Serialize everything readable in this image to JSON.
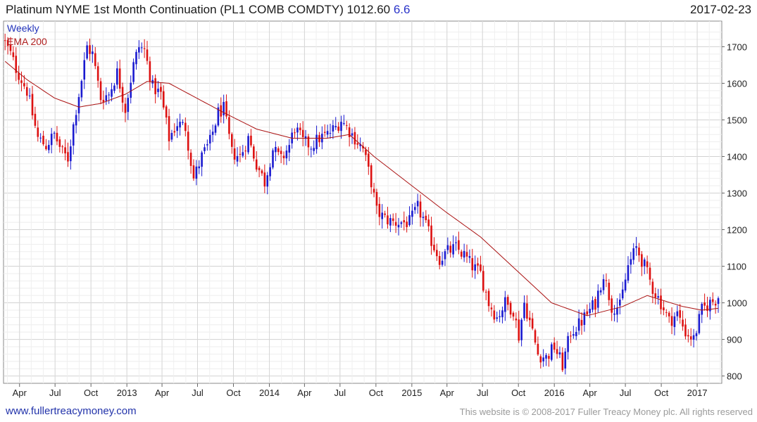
{
  "header": {
    "title": "Platinum NYME 1st Month Continuation (PL1 COMB COMDTY) 1012.60",
    "change": "6.6",
    "date": "2017-02-23"
  },
  "footer": {
    "link": "www.fullertreacymoney.com",
    "copyright": "This website is © 2008-2017 Fuller Treacy Money plc. All rights reserved"
  },
  "colors": {
    "up": "#1a1ad0",
    "down": "#dd1111",
    "ema": "#aa1111",
    "grid": "#d9d9d9"
  },
  "chart_data": {
    "type": "candlestick",
    "period_label": "Weekly",
    "overlay_label": "EMA 200",
    "ylim": [
      780,
      1770
    ],
    "y_ticks": [
      800,
      900,
      1000,
      1100,
      1200,
      1300,
      1400,
      1500,
      1600,
      1700
    ],
    "x_tick_labels": [
      "Apr",
      "Jul",
      "Oct",
      "2013",
      "Apr",
      "Jul",
      "Oct",
      "2014",
      "Apr",
      "Jul",
      "Oct",
      "2015",
      "Apr",
      "Jul",
      "Oct",
      "2016",
      "Apr",
      "Jul",
      "Oct",
      "2017"
    ],
    "x_ticks": [
      "2012-04-01",
      "2012-07-01",
      "2012-10-01",
      "2013-01-01",
      "2013-04-01",
      "2013-07-01",
      "2013-10-01",
      "2014-01-01",
      "2014-04-01",
      "2014-07-01",
      "2014-10-01",
      "2015-01-01",
      "2015-04-01",
      "2015-07-01",
      "2015-10-01",
      "2016-01-01",
      "2016-04-01",
      "2016-07-01",
      "2016-10-01",
      "2017-01-01"
    ],
    "x_range": [
      "2012-02-20",
      "2017-03-05"
    ],
    "last_close": 1012.6,
    "close_anchors": [
      [
        "2012-02-24",
        1710
      ],
      [
        "2012-03-09",
        1680
      ],
      [
        "2012-03-23",
        1640
      ],
      [
        "2012-04-20",
        1580
      ],
      [
        "2012-05-18",
        1450
      ],
      [
        "2012-06-08",
        1430
      ],
      [
        "2012-06-29",
        1460
      ],
      [
        "2012-07-20",
        1410
      ],
      [
        "2012-08-03",
        1395
      ],
      [
        "2012-08-24",
        1530
      ],
      [
        "2012-09-07",
        1610
      ],
      [
        "2012-09-21",
        1700
      ],
      [
        "2012-10-05",
        1680
      ],
      [
        "2012-10-26",
        1560
      ],
      [
        "2012-11-16",
        1570
      ],
      [
        "2012-12-07",
        1630
      ],
      [
        "2012-12-28",
        1530
      ],
      [
        "2013-01-18",
        1650
      ],
      [
        "2013-02-01",
        1700
      ],
      [
        "2013-02-15",
        1690
      ],
      [
        "2013-03-08",
        1590
      ],
      [
        "2013-03-29",
        1570
      ],
      [
        "2013-04-19",
        1450
      ],
      [
        "2013-05-10",
        1490
      ],
      [
        "2013-05-31",
        1480
      ],
      [
        "2013-06-21",
        1340
      ],
      [
        "2013-07-12",
        1400
      ],
      [
        "2013-08-02",
        1440
      ],
      [
        "2013-08-23",
        1520
      ],
      [
        "2013-09-06",
        1530
      ],
      [
        "2013-09-27",
        1410
      ],
      [
        "2013-10-18",
        1400
      ],
      [
        "2013-11-08",
        1450
      ],
      [
        "2013-11-29",
        1380
      ],
      [
        "2013-12-20",
        1330
      ],
      [
        "2014-01-10",
        1420
      ],
      [
        "2014-01-31",
        1390
      ],
      [
        "2014-02-21",
        1430
      ],
      [
        "2014-03-07",
        1480
      ],
      [
        "2014-03-28",
        1440
      ],
      [
        "2014-04-18",
        1430
      ],
      [
        "2014-05-09",
        1450
      ],
      [
        "2014-05-30",
        1460
      ],
      [
        "2014-06-20",
        1480
      ],
      [
        "2014-07-04",
        1500
      ],
      [
        "2014-07-18",
        1480
      ],
      [
        "2014-08-08",
        1450
      ],
      [
        "2014-08-29",
        1420
      ],
      [
        "2014-09-19",
        1330
      ],
      [
        "2014-10-03",
        1250
      ],
      [
        "2014-10-24",
        1230
      ],
      [
        "2014-11-14",
        1220
      ],
      [
        "2014-12-05",
        1220
      ],
      [
        "2014-12-26",
        1220
      ],
      [
        "2015-01-16",
        1260
      ],
      [
        "2015-01-30",
        1230
      ],
      [
        "2015-02-20",
        1170
      ],
      [
        "2015-03-13",
        1120
      ],
      [
        "2015-04-03",
        1140
      ],
      [
        "2015-04-24",
        1150
      ],
      [
        "2015-05-15",
        1130
      ],
      [
        "2015-06-05",
        1100
      ],
      [
        "2015-06-26",
        1080
      ],
      [
        "2015-07-17",
        1000
      ],
      [
        "2015-08-07",
        960
      ],
      [
        "2015-08-28",
        1000
      ],
      [
        "2015-09-18",
        980
      ],
      [
        "2015-10-02",
        910
      ],
      [
        "2015-10-16",
        1000
      ],
      [
        "2015-10-30",
        950
      ],
      [
        "2015-11-20",
        860
      ],
      [
        "2015-12-11",
        850
      ],
      [
        "2016-01-01",
        880
      ],
      [
        "2016-01-22",
        830
      ],
      [
        "2016-02-12",
        920
      ],
      [
        "2016-03-04",
        940
      ],
      [
        "2016-03-25",
        970
      ],
      [
        "2016-04-15",
        1000
      ],
      [
        "2016-05-06",
        1080
      ],
      [
        "2016-05-27",
        990
      ],
      [
        "2016-06-17",
        990
      ],
      [
        "2016-07-08",
        1100
      ],
      [
        "2016-07-29",
        1150
      ],
      [
        "2016-08-19",
        1100
      ],
      [
        "2016-09-09",
        1040
      ],
      [
        "2016-09-30",
        1000
      ],
      [
        "2016-10-21",
        950
      ],
      [
        "2016-11-11",
        970
      ],
      [
        "2016-12-02",
        920
      ],
      [
        "2016-12-23",
        900
      ],
      [
        "2017-01-13",
        980
      ],
      [
        "2017-02-03",
        1000
      ],
      [
        "2017-02-24",
        1012.6
      ]
    ],
    "ema_anchors": [
      [
        "2012-02-24",
        1660
      ],
      [
        "2012-04-20",
        1610
      ],
      [
        "2012-06-29",
        1560
      ],
      [
        "2012-08-31",
        1535
      ],
      [
        "2012-10-26",
        1545
      ],
      [
        "2012-12-28",
        1570
      ],
      [
        "2013-02-22",
        1605
      ],
      [
        "2013-04-19",
        1600
      ],
      [
        "2013-06-28",
        1560
      ],
      [
        "2013-09-06",
        1520
      ],
      [
        "2013-11-29",
        1475
      ],
      [
        "2014-02-28",
        1450
      ],
      [
        "2014-05-30",
        1450
      ],
      [
        "2014-07-25",
        1460
      ],
      [
        "2014-09-26",
        1400
      ],
      [
        "2014-12-26",
        1325
      ],
      [
        "2015-03-27",
        1250
      ],
      [
        "2015-06-26",
        1180
      ],
      [
        "2015-09-25",
        1090
      ],
      [
        "2015-12-25",
        1000
      ],
      [
        "2016-03-25",
        965
      ],
      [
        "2016-06-24",
        990
      ],
      [
        "2016-08-26",
        1020
      ],
      [
        "2016-11-25",
        990
      ],
      [
        "2017-01-13",
        980
      ],
      [
        "2017-02-24",
        985
      ]
    ]
  }
}
